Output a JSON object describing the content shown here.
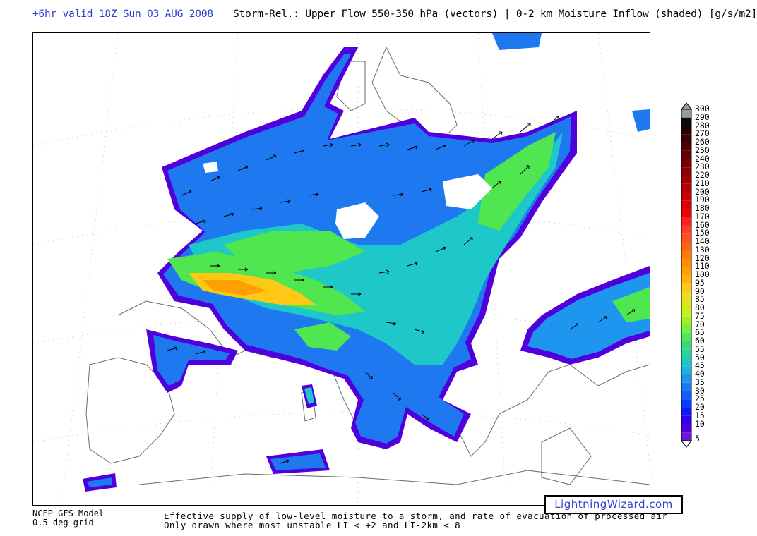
{
  "header": {
    "valid_time": "+6hr valid 18Z Sun 03 AUG 2008",
    "title": "Storm-Rel.: Upper Flow 550-350 hPa (vectors) | 0-2 km Moisture Inflow (shaded) [g/s/m2]"
  },
  "legend": {
    "levels": [
      "300",
      "290",
      "280",
      "270",
      "260",
      "250",
      "240",
      "230",
      "220",
      "210",
      "200",
      "190",
      "180",
      "170",
      "160",
      "150",
      "140",
      "130",
      "120",
      "110",
      "100",
      "95",
      "90",
      "85",
      "80",
      "75",
      "70",
      "65",
      "60",
      "55",
      "50",
      "45",
      "40",
      "35",
      "30",
      "25",
      "20",
      "15",
      "10",
      "5"
    ],
    "colors": [
      "#9a9a9a",
      "#0a0a0a",
      "#280000",
      "#3c0000",
      "#500000",
      "#640000",
      "#780000",
      "#8c0000",
      "#a00000",
      "#b40000",
      "#c80000",
      "#dc0000",
      "#f00000",
      "#ff1e1e",
      "#ff3c28",
      "#ff5020",
      "#ff6414",
      "#ff780a",
      "#ff8c00",
      "#ffa000",
      "#ffb400",
      "#ffc814",
      "#f0dc1e",
      "#dce61e",
      "#c8f01e",
      "#a0f028",
      "#78f03c",
      "#50e650",
      "#32dc78",
      "#28d2a0",
      "#1ec8c8",
      "#1eb4dc",
      "#1e96f0",
      "#1e78f0",
      "#145aff",
      "#0a3cff",
      "#1414ff",
      "#3200f0",
      "#5000dc",
      "#6e14dc"
    ],
    "top_marker_color": "#9a9a9a",
    "bottom_marker_color": "#ffffff"
  },
  "footer": {
    "model_line1": "NCEP GFS Model",
    "model_line2": "0.5 deg grid",
    "desc_line1": "Effective supply of low-level moisture to a storm, and rate of evacuation of processed air",
    "desc_line2": "Only drawn where most unstable LI < +2 and LI-2km < 8"
  },
  "watermark": "LightningWizard.com"
}
